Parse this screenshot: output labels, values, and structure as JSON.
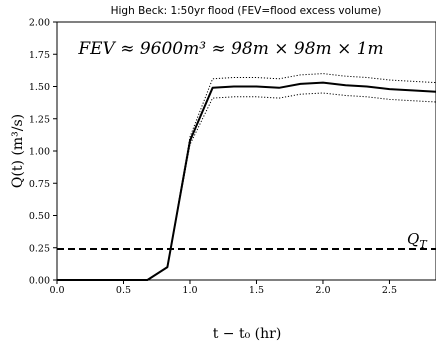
{
  "chart_data": {
    "type": "line",
    "title": "High Beck: 1:50yr flood (FEV=flood excess volume)",
    "xlabel": "t − t₀ (hr)",
    "ylabel": "Q(t) (m³/s)",
    "xlim": [
      0.0,
      2.85
    ],
    "ylim": [
      0.0,
      2.0
    ],
    "xticks": [
      "0.0",
      "0.5",
      "1.0",
      "1.5",
      "2.0",
      "2.5"
    ],
    "yticks": [
      "0.00",
      "0.25",
      "0.50",
      "0.75",
      "1.00",
      "1.25",
      "1.50",
      "1.75",
      "2.00"
    ],
    "annotation": "FEV ≈ 9600m³ ≈ 98m × 98m × 1m",
    "threshold": {
      "label": "Q_T",
      "value": 0.24
    },
    "series": [
      {
        "style": "solid",
        "x": [
          0.0,
          0.68,
          0.83,
          1.0,
          1.17,
          1.33,
          1.5,
          1.67,
          1.83,
          2.0,
          2.17,
          2.33,
          2.5,
          2.67,
          2.85
        ],
        "y": [
          0.0,
          0.0,
          0.1,
          1.08,
          1.49,
          1.5,
          1.5,
          1.49,
          1.52,
          1.53,
          1.51,
          1.5,
          1.48,
          1.47,
          1.46
        ]
      },
      {
        "style": "dotted",
        "x": [
          0.0,
          0.68,
          0.83,
          1.0,
          1.17,
          1.33,
          1.5,
          1.67,
          1.83,
          2.0,
          2.17,
          2.33,
          2.5,
          2.67,
          2.85
        ],
        "y": [
          0.0,
          0.0,
          0.1,
          1.11,
          1.56,
          1.57,
          1.57,
          1.56,
          1.59,
          1.6,
          1.58,
          1.57,
          1.55,
          1.54,
          1.53
        ]
      },
      {
        "style": "dotted",
        "x": [
          0.0,
          0.68,
          0.83,
          1.0,
          1.17,
          1.33,
          1.5,
          1.67,
          1.83,
          2.0,
          2.17,
          2.33,
          2.5,
          2.67,
          2.85
        ],
        "y": [
          0.0,
          0.0,
          0.1,
          1.05,
          1.41,
          1.42,
          1.42,
          1.41,
          1.44,
          1.45,
          1.43,
          1.42,
          1.4,
          1.39,
          1.38
        ]
      }
    ]
  }
}
